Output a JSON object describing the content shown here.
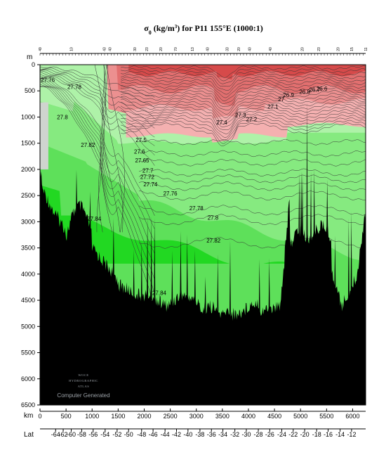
{
  "chart_data": {
    "type": "contour",
    "title_prefix": "σ",
    "title_sub": "0",
    "title_rest": " (kg/m",
    "title_sup": "3",
    "title_end": ") for P11 155°E (1000:1)",
    "y_unit": "m",
    "x_unit": "km",
    "lat_label": "Lat",
    "y_range": [
      0,
      6500
    ],
    "x_range": [
      0,
      6250
    ],
    "y_ticks": [
      0,
      500,
      1000,
      1500,
      2000,
      2500,
      3000,
      3500,
      4000,
      4500,
      5000,
      5500,
      6000,
      6500
    ],
    "x_ticks": [
      0,
      500,
      1000,
      1500,
      2000,
      2500,
      3000,
      3500,
      4000,
      4500,
      5000,
      5500,
      6000
    ],
    "lat_ticks": [
      {
        "label": "-64",
        "km": 300
      },
      {
        "label": "-62",
        "km": 445
      },
      {
        "label": "-60",
        "km": 600
      },
      {
        "label": "-58",
        "km": 800
      },
      {
        "label": "-56",
        "km": 1020
      },
      {
        "label": "-54",
        "km": 1250
      },
      {
        "label": "-52",
        "km": 1480
      },
      {
        "label": "-50",
        "km": 1700
      },
      {
        "label": "-48",
        "km": 1950
      },
      {
        "label": "-46",
        "km": 2170
      },
      {
        "label": "-44",
        "km": 2400
      },
      {
        "label": "-42",
        "km": 2620
      },
      {
        "label": "-40",
        "km": 2840
      },
      {
        "label": "-38",
        "km": 3070
      },
      {
        "label": "-36",
        "km": 3290
      },
      {
        "label": "-34",
        "km": 3510
      },
      {
        "label": "-32",
        "km": 3740
      },
      {
        "label": "-30",
        "km": 3960
      },
      {
        "label": "-28",
        "km": 4190
      },
      {
        "label": "-26",
        "km": 4410
      },
      {
        "label": "-24",
        "km": 4640
      },
      {
        "label": "-22",
        "km": 4860
      },
      {
        "label": "-20",
        "km": 5080
      },
      {
        "label": "-18",
        "km": 5310
      },
      {
        "label": "-16",
        "km": 5530
      },
      {
        "label": "-14",
        "km": 5760
      },
      {
        "label": "-12",
        "km": 5980
      }
    ],
    "station_labels": [
      {
        "label": "49",
        "km": 0
      },
      {
        "label": "10",
        "km": 600
      },
      {
        "label": "43",
        "km": 1230
      },
      {
        "label": "40",
        "km": 1340
      },
      {
        "label": "30",
        "km": 1820
      },
      {
        "label": "23",
        "km": 2050
      },
      {
        "label": "20",
        "km": 2320
      },
      {
        "label": "70",
        "km": 2600
      },
      {
        "label": "13",
        "km": 2920
      },
      {
        "label": "40",
        "km": 3210
      },
      {
        "label": "33",
        "km": 3590
      },
      {
        "label": "20",
        "km": 3810
      },
      {
        "label": "40",
        "km": 4020
      },
      {
        "label": "40",
        "km": 4420
      },
      {
        "label": "20",
        "km": 5030
      },
      {
        "label": "23",
        "km": 5350
      },
      {
        "label": "20",
        "km": 5720
      },
      {
        "label": "15",
        "km": 5980
      },
      {
        "label": "11",
        "km": 6250
      }
    ],
    "contour_labels": [
      {
        "label": "27.76",
        "km": 150,
        "depth": 330
      },
      {
        "label": "27.78",
        "km": 660,
        "depth": 460
      },
      {
        "label": "27.8",
        "km": 430,
        "depth": 1040
      },
      {
        "label": "27.82",
        "km": 920,
        "depth": 1570
      },
      {
        "label": "27.84",
        "km": 1040,
        "depth": 2980
      },
      {
        "label": "27.84",
        "km": 2290,
        "depth": 4400
      },
      {
        "label": "27.5",
        "km": 1940,
        "depth": 1480
      },
      {
        "label": "27.6",
        "km": 1910,
        "depth": 1700
      },
      {
        "label": "27.65",
        "km": 1960,
        "depth": 1870
      },
      {
        "label": "27.7",
        "km": 2070,
        "depth": 2060
      },
      {
        "label": "27.72",
        "km": 2060,
        "depth": 2180
      },
      {
        "label": "27.74",
        "km": 2120,
        "depth": 2320
      },
      {
        "label": "27.76",
        "km": 2500,
        "depth": 2500
      },
      {
        "label": "27.78",
        "km": 3000,
        "depth": 2780
      },
      {
        "label": "27.8",
        "km": 3320,
        "depth": 2960
      },
      {
        "label": "27.82",
        "km": 3330,
        "depth": 3400
      },
      {
        "label": "27.4",
        "km": 3490,
        "depth": 1140
      },
      {
        "label": "27.3",
        "km": 3850,
        "depth": 1000
      },
      {
        "label": "27.2",
        "km": 4060,
        "depth": 1080
      },
      {
        "label": "27.1",
        "km": 4470,
        "depth": 840
      },
      {
        "label": "27",
        "km": 4630,
        "depth": 700
      },
      {
        "label": "26.9",
        "km": 4770,
        "depth": 620
      },
      {
        "label": "26.8",
        "km": 5080,
        "depth": 560
      },
      {
        "label": "26.7",
        "km": 5270,
        "depth": 520
      },
      {
        "label": "26.6",
        "km": 5410,
        "depth": 500
      }
    ],
    "grid": false,
    "bands": [
      {
        "color": "#d64a4a"
      },
      {
        "color": "#e26f6f"
      },
      {
        "color": "#ec9090"
      },
      {
        "color": "#f4b0b0"
      },
      {
        "color": "#aef2a8"
      },
      {
        "color": "#86ea80"
      },
      {
        "color": "#5ee05a"
      },
      {
        "color": "#22d822"
      }
    ]
  },
  "watermark": {
    "line1": "WOCE",
    "line2": "HYDROGRAPHIC",
    "line3": "ATLAS",
    "line4": "Computer Generated"
  }
}
